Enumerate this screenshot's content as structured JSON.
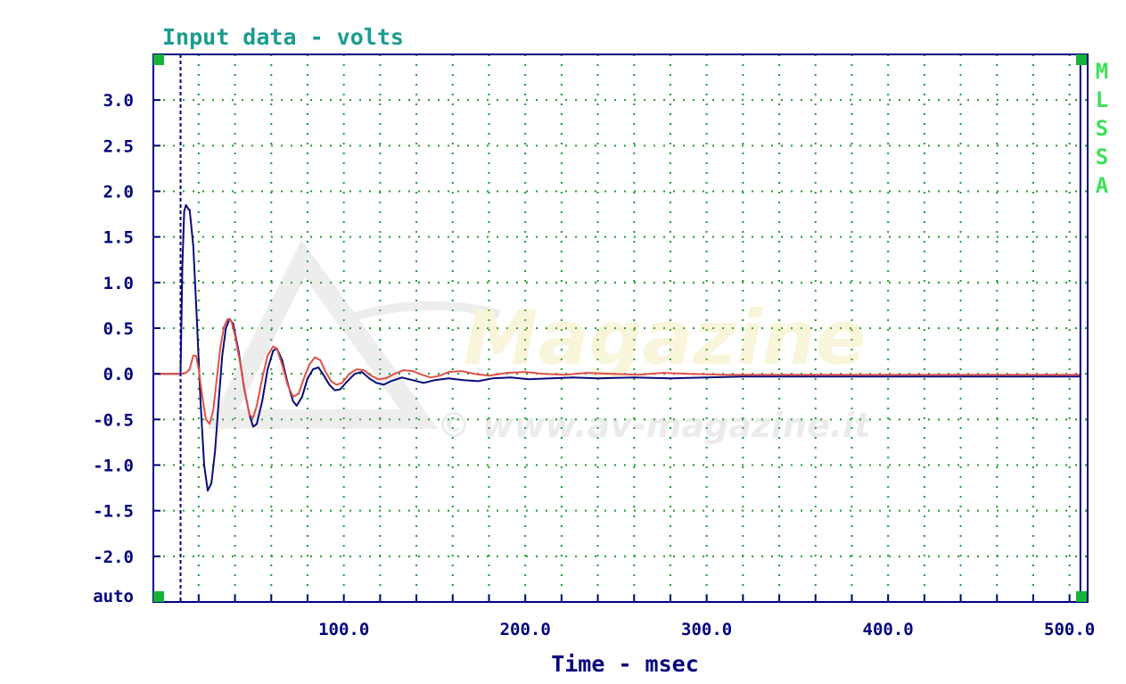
{
  "chart_data": {
    "type": "line",
    "title": "Input data - volts",
    "xlabel": "Time - msec",
    "ylabel": "",
    "xlim": [
      -5,
      510
    ],
    "ylim": [
      -2.5,
      3.5
    ],
    "grid": true,
    "y_ticks": [
      {
        "value": 3.0,
        "label": "3.0"
      },
      {
        "value": 2.5,
        "label": "2.5"
      },
      {
        "value": 2.0,
        "label": "2.0"
      },
      {
        "value": 1.5,
        "label": "1.5"
      },
      {
        "value": 1.0,
        "label": "1.0"
      },
      {
        "value": 0.5,
        "label": "0.5"
      },
      {
        "value": 0.0,
        "label": "0.0"
      },
      {
        "value": -0.5,
        "label": "-0.5"
      },
      {
        "value": -1.0,
        "label": "-1.0"
      },
      {
        "value": -1.5,
        "label": "-1.5"
      },
      {
        "value": -2.0,
        "label": "-2.0"
      }
    ],
    "y_auto_label": "auto",
    "x_ticks": [
      {
        "value": 100,
        "label": "100.0"
      },
      {
        "value": 200,
        "label": "200.0"
      },
      {
        "value": 300,
        "label": "300.0"
      },
      {
        "value": 400,
        "label": "400.0"
      },
      {
        "value": 500,
        "label": "500.0"
      }
    ],
    "cursor_left_x": 10,
    "cursor_right_x": 506,
    "series": [
      {
        "color": "#0a0a7a",
        "points": [
          [
            -5,
            0.0
          ],
          [
            10,
            0.0
          ],
          [
            11,
            1.2
          ],
          [
            12,
            1.78
          ],
          [
            13,
            1.85
          ],
          [
            14.5,
            1.8
          ],
          [
            15,
            1.8
          ],
          [
            17,
            1.4
          ],
          [
            19,
            0.6
          ],
          [
            21,
            -0.3
          ],
          [
            23,
            -1.0
          ],
          [
            25,
            -1.28
          ],
          [
            27,
            -1.2
          ],
          [
            29,
            -0.85
          ],
          [
            31,
            -0.3
          ],
          [
            33,
            0.2
          ],
          [
            35,
            0.5
          ],
          [
            37,
            0.6
          ],
          [
            39,
            0.55
          ],
          [
            42,
            0.25
          ],
          [
            45,
            -0.15
          ],
          [
            48,
            -0.45
          ],
          [
            50,
            -0.58
          ],
          [
            52,
            -0.55
          ],
          [
            55,
            -0.3
          ],
          [
            58,
            0.05
          ],
          [
            61,
            0.25
          ],
          [
            63,
            0.28
          ],
          [
            66,
            0.15
          ],
          [
            69,
            -0.1
          ],
          [
            72,
            -0.3
          ],
          [
            74,
            -0.35
          ],
          [
            77,
            -0.25
          ],
          [
            80,
            -0.05
          ],
          [
            83,
            0.05
          ],
          [
            86,
            0.07
          ],
          [
            89,
            -0.02
          ],
          [
            92,
            -0.12
          ],
          [
            95,
            -0.18
          ],
          [
            98,
            -0.17
          ],
          [
            102,
            -0.08
          ],
          [
            106,
            -0.0
          ],
          [
            110,
            0.02
          ],
          [
            114,
            -0.05
          ],
          [
            118,
            -0.1
          ],
          [
            122,
            -0.12
          ],
          [
            126,
            -0.08
          ],
          [
            132,
            -0.04
          ],
          [
            138,
            -0.07
          ],
          [
            144,
            -0.1
          ],
          [
            150,
            -0.07
          ],
          [
            158,
            -0.05
          ],
          [
            166,
            -0.07
          ],
          [
            174,
            -0.08
          ],
          [
            182,
            -0.05
          ],
          [
            192,
            -0.04
          ],
          [
            202,
            -0.06
          ],
          [
            214,
            -0.05
          ],
          [
            226,
            -0.04
          ],
          [
            240,
            -0.05
          ],
          [
            260,
            -0.04
          ],
          [
            280,
            -0.05
          ],
          [
            300,
            -0.04
          ],
          [
            320,
            -0.03
          ],
          [
            360,
            -0.03
          ],
          [
            420,
            -0.03
          ],
          [
            506,
            -0.03
          ]
        ]
      },
      {
        "color": "#e0504a",
        "points": [
          [
            -5,
            0.0
          ],
          [
            10,
            0.0
          ],
          [
            13,
            0.01
          ],
          [
            15,
            0.05
          ],
          [
            17,
            0.2
          ],
          [
            18.5,
            0.2
          ],
          [
            20,
            0.05
          ],
          [
            22,
            -0.25
          ],
          [
            24,
            -0.5
          ],
          [
            26,
            -0.55
          ],
          [
            28,
            -0.4
          ],
          [
            30,
            -0.05
          ],
          [
            32,
            0.3
          ],
          [
            34,
            0.52
          ],
          [
            36,
            0.6
          ],
          [
            38,
            0.58
          ],
          [
            40,
            0.42
          ],
          [
            43,
            0.1
          ],
          [
            46,
            -0.25
          ],
          [
            48,
            -0.45
          ],
          [
            50,
            -0.48
          ],
          [
            52,
            -0.35
          ],
          [
            55,
            -0.05
          ],
          [
            58,
            0.2
          ],
          [
            61,
            0.3
          ],
          [
            63,
            0.28
          ],
          [
            66,
            0.1
          ],
          [
            69,
            -0.12
          ],
          [
            72,
            -0.25
          ],
          [
            75,
            -0.22
          ],
          [
            78,
            -0.05
          ],
          [
            81,
            0.1
          ],
          [
            84,
            0.18
          ],
          [
            87,
            0.15
          ],
          [
            90,
            0.02
          ],
          [
            93,
            -0.08
          ],
          [
            96,
            -0.12
          ],
          [
            99,
            -0.1
          ],
          [
            103,
            0.0
          ],
          [
            107,
            0.05
          ],
          [
            111,
            0.04
          ],
          [
            115,
            -0.02
          ],
          [
            119,
            -0.06
          ],
          [
            123,
            -0.05
          ],
          [
            128,
            0.0
          ],
          [
            133,
            0.04
          ],
          [
            138,
            0.03
          ],
          [
            143,
            -0.01
          ],
          [
            148,
            -0.04
          ],
          [
            153,
            -0.02
          ],
          [
            158,
            0.02
          ],
          [
            165,
            0.03
          ],
          [
            172,
            0.0
          ],
          [
            180,
            -0.02
          ],
          [
            190,
            0.01
          ],
          [
            200,
            0.02
          ],
          [
            210,
            0.0
          ],
          [
            222,
            -0.01
          ],
          [
            234,
            0.01
          ],
          [
            248,
            0.0
          ],
          [
            262,
            -0.01
          ],
          [
            276,
            0.01
          ],
          [
            290,
            0.0
          ],
          [
            310,
            -0.01
          ],
          [
            340,
            -0.01
          ],
          [
            400,
            -0.01
          ],
          [
            506,
            -0.01
          ]
        ]
      }
    ]
  },
  "side_label": [
    "M",
    "L",
    "S",
    "S",
    "A"
  ],
  "watermark": {
    "brand": "Magazine",
    "site": "© www.av-magazine.it"
  }
}
